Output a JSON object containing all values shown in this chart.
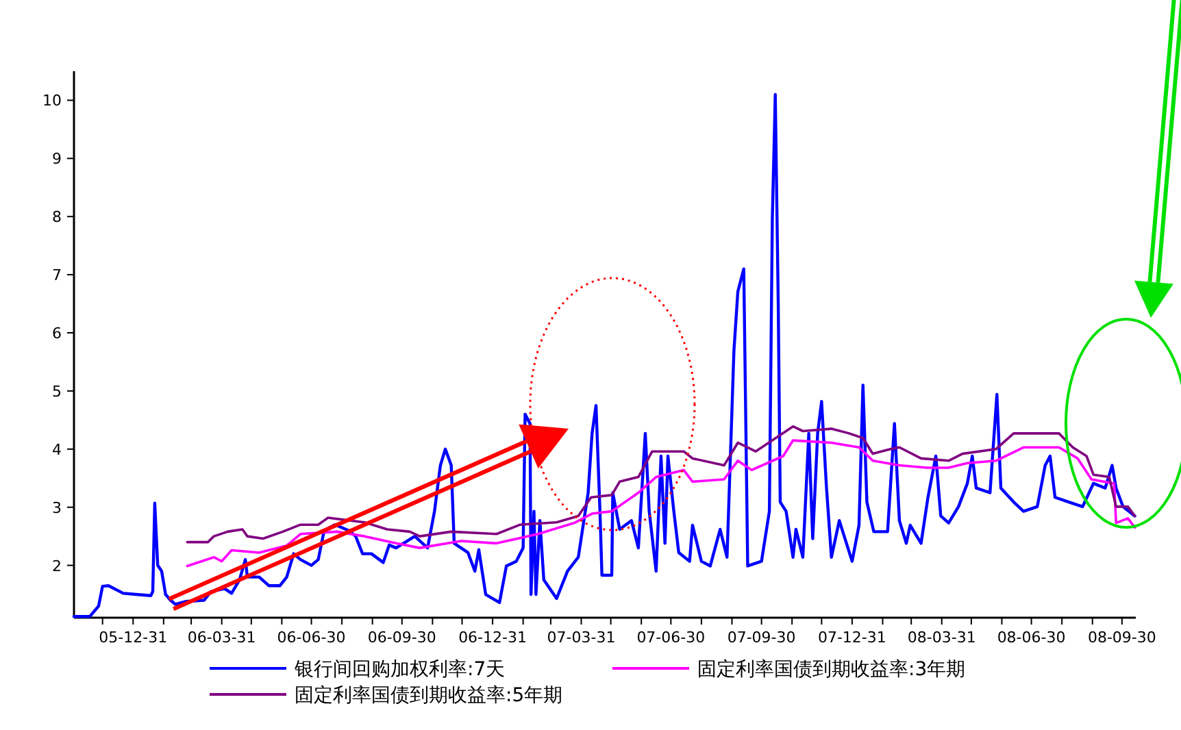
{
  "chart_data": {
    "type": "line",
    "legend": "bottom",
    "grid": false,
    "xlim": [
      "2005-11-01",
      "2008-10-14"
    ],
    "ylim": [
      1.1,
      10.5
    ],
    "yticks": [
      2,
      3,
      4,
      5,
      6,
      7,
      8,
      9,
      10
    ],
    "xticks": [
      {
        "value": "2005-11-30",
        "label": null
      },
      {
        "value": "2005-12-31",
        "label": "05-12-31"
      },
      {
        "value": "2006-01-31",
        "label": null
      },
      {
        "value": "2006-02-28",
        "label": null
      },
      {
        "value": "2006-03-31",
        "label": "06-03-31"
      },
      {
        "value": "2006-04-30",
        "label": null
      },
      {
        "value": "2006-05-31",
        "label": null
      },
      {
        "value": "2006-06-30",
        "label": "06-06-30"
      },
      {
        "value": "2006-07-31",
        "label": null
      },
      {
        "value": "2006-08-31",
        "label": null
      },
      {
        "value": "2006-09-30",
        "label": "06-09-30"
      },
      {
        "value": "2006-10-31",
        "label": null
      },
      {
        "value": "2006-11-30",
        "label": null
      },
      {
        "value": "2006-12-31",
        "label": "06-12-31"
      },
      {
        "value": "2007-01-31",
        "label": null
      },
      {
        "value": "2007-02-28",
        "label": null
      },
      {
        "value": "2007-03-31",
        "label": "07-03-31"
      },
      {
        "value": "2007-04-30",
        "label": null
      },
      {
        "value": "2007-05-31",
        "label": null
      },
      {
        "value": "2007-06-30",
        "label": "07-06-30"
      },
      {
        "value": "2007-07-31",
        "label": null
      },
      {
        "value": "2007-08-31",
        "label": null
      },
      {
        "value": "2007-09-30",
        "label": "07-09-30"
      },
      {
        "value": "2007-10-31",
        "label": null
      },
      {
        "value": "2007-11-30",
        "label": null
      },
      {
        "value": "2007-12-31",
        "label": "07-12-31"
      },
      {
        "value": "2008-01-31",
        "label": null
      },
      {
        "value": "2008-02-29",
        "label": null
      },
      {
        "value": "2008-03-31",
        "label": "08-03-31"
      },
      {
        "value": "2008-04-30",
        "label": null
      },
      {
        "value": "2008-05-31",
        "label": null
      },
      {
        "value": "2008-06-30",
        "label": "08-06-30"
      },
      {
        "value": "2008-07-31",
        "label": null
      },
      {
        "value": "2008-08-31",
        "label": null
      },
      {
        "value": "2008-09-30",
        "label": "08-09-30"
      }
    ],
    "series": [
      {
        "name": "银行间回购加权利率:7天",
        "color": "#0000ff",
        "x": [
          "2005-11-01",
          "2005-11-17",
          "2005-11-26",
          "2005-11-30",
          "2005-12-06",
          "2005-12-21",
          "2006-01-03",
          "2006-01-18",
          "2006-01-20",
          "2006-01-22",
          "2006-01-25",
          "2006-01-29",
          "2006-02-02",
          "2006-02-07",
          "2006-02-12",
          "2006-02-23",
          "2006-03-13",
          "2006-03-20",
          "2006-04-03",
          "2006-04-10",
          "2006-04-18",
          "2006-04-24",
          "2006-04-26",
          "2006-05-08",
          "2006-05-18",
          "2006-05-29",
          "2006-06-05",
          "2006-06-12",
          "2006-06-19",
          "2006-06-30",
          "2006-07-07",
          "2006-07-13",
          "2006-07-24",
          "2006-08-07",
          "2006-08-14",
          "2006-08-21",
          "2006-08-30",
          "2006-09-11",
          "2006-09-17",
          "2006-09-24",
          "2006-10-13",
          "2006-10-26",
          "2006-11-02",
          "2006-11-08",
          "2006-11-13",
          "2006-11-19",
          "2006-11-22",
          "2006-12-06",
          "2006-12-13",
          "2006-12-17",
          "2006-12-24",
          "2007-01-07",
          "2007-01-14",
          "2007-01-24",
          "2007-01-31",
          "2007-02-02",
          "2007-02-07",
          "2007-02-08",
          "2007-02-11",
          "2007-02-13",
          "2007-02-17",
          "2007-02-21",
          "2007-03-06",
          "2007-03-17",
          "2007-03-28",
          "2007-04-07",
          "2007-04-11",
          "2007-04-15",
          "2007-04-19",
          "2007-04-21",
          "2007-05-01",
          "2007-05-02",
          "2007-05-09",
          "2007-05-21",
          "2007-05-28",
          "2007-06-04",
          "2007-06-08",
          "2007-06-15",
          "2007-06-20",
          "2007-06-24",
          "2007-06-27",
          "2007-07-03",
          "2007-07-08",
          "2007-07-19",
          "2007-07-22",
          "2007-07-31",
          "2007-08-09",
          "2007-08-19",
          "2007-08-26",
          "2007-09-02",
          "2007-09-06",
          "2007-09-12",
          "2007-09-16",
          "2007-09-30",
          "2007-10-08",
          "2007-10-11",
          "2007-10-14",
          "2007-10-17",
          "2007-10-19",
          "2007-10-25",
          "2007-11-01",
          "2007-11-04",
          "2007-11-11",
          "2007-11-17",
          "2007-11-21",
          "2007-11-26",
          "2007-11-30",
          "2007-12-05",
          "2007-12-10",
          "2007-12-18",
          "2007-12-31",
          "2008-01-07",
          "2008-01-11",
          "2008-01-15",
          "2008-01-22",
          "2008-02-05",
          "2008-02-12",
          "2008-02-17",
          "2008-02-24",
          "2008-02-28",
          "2008-03-10",
          "2008-03-17",
          "2008-03-25",
          "2008-03-30",
          "2008-04-07",
          "2008-04-17",
          "2008-04-26",
          "2008-05-01",
          "2008-05-05",
          "2008-05-19",
          "2008-05-26",
          "2008-05-30",
          "2008-06-12",
          "2008-06-22",
          "2008-07-06",
          "2008-07-14",
          "2008-07-19",
          "2008-07-24",
          "2008-08-07",
          "2008-08-21",
          "2008-09-01",
          "2008-09-13",
          "2008-09-20",
          "2008-09-24",
          "2008-10-01",
          "2008-10-13"
        ],
        "values": [
          1.12,
          1.12,
          1.3,
          1.64,
          1.65,
          1.52,
          1.5,
          1.48,
          1.55,
          3.07,
          2.0,
          1.9,
          1.5,
          1.4,
          1.33,
          1.38,
          1.4,
          1.55,
          1.6,
          1.52,
          1.75,
          2.1,
          1.8,
          1.8,
          1.65,
          1.65,
          1.8,
          2.2,
          2.1,
          2.0,
          2.1,
          2.6,
          2.7,
          2.6,
          2.5,
          2.2,
          2.2,
          2.05,
          2.35,
          2.3,
          2.5,
          2.3,
          2.93,
          3.72,
          4.0,
          3.72,
          2.38,
          2.22,
          1.9,
          2.27,
          1.5,
          1.36,
          1.99,
          2.07,
          2.3,
          4.6,
          4.44,
          1.5,
          2.93,
          1.5,
          2.77,
          1.75,
          1.43,
          1.9,
          2.14,
          3.25,
          4.27,
          4.75,
          2.93,
          1.83,
          1.83,
          3.25,
          2.62,
          2.77,
          2.3,
          4.27,
          2.93,
          1.9,
          3.88,
          2.38,
          3.88,
          2.93,
          2.22,
          2.07,
          2.69,
          2.07,
          1.99,
          2.62,
          2.14,
          5.69,
          6.71,
          7.1,
          1.99,
          2.07,
          2.93,
          7.96,
          10.1,
          6.5,
          3.09,
          2.93,
          2.14,
          2.62,
          2.14,
          4.27,
          2.46,
          4.27,
          4.82,
          3.33,
          2.14,
          2.77,
          2.07,
          2.69,
          5.1,
          3.09,
          2.58,
          2.58,
          4.44,
          2.77,
          2.38,
          2.69,
          2.38,
          3.17,
          3.88,
          2.85,
          2.73,
          3.01,
          3.41,
          3.88,
          3.33,
          3.25,
          4.94,
          3.33,
          3.09,
          2.93,
          3.01,
          3.72,
          3.88,
          3.17,
          3.09,
          3.01,
          3.41,
          3.33,
          3.72,
          3.33,
          3.01,
          2.85
        ]
      },
      {
        "name": "固定利率国债到期收益率:3年期",
        "color": "#ff00ff",
        "x": [
          "2006-02-24",
          "2006-03-23",
          "2006-03-31",
          "2006-04-10",
          "2006-05-08",
          "2006-06-05",
          "2006-06-19",
          "2006-07-26",
          "2006-08-23",
          "2006-09-24",
          "2006-10-18",
          "2006-11-29",
          "2007-01-04",
          "2007-02-15",
          "2007-03-24",
          "2007-04-11",
          "2007-05-01",
          "2007-05-28",
          "2007-06-15",
          "2007-07-13",
          "2007-07-22",
          "2007-08-23",
          "2007-09-06",
          "2007-09-20",
          "2007-10-22",
          "2007-11-01",
          "2007-12-10",
          "2008-01-07",
          "2008-01-21",
          "2008-02-17",
          "2008-03-16",
          "2008-04-07",
          "2008-04-26",
          "2008-05-25",
          "2008-06-22",
          "2008-07-28",
          "2008-08-16",
          "2008-08-30",
          "2008-09-22",
          "2008-09-24",
          "2008-10-06",
          "2008-10-13"
        ],
        "values": [
          1.99,
          2.14,
          2.07,
          2.26,
          2.22,
          2.34,
          2.54,
          2.58,
          2.5,
          2.38,
          2.3,
          2.42,
          2.38,
          2.54,
          2.73,
          2.89,
          2.93,
          3.25,
          3.52,
          3.64,
          3.44,
          3.48,
          3.8,
          3.64,
          3.88,
          4.15,
          4.11,
          4.03,
          3.8,
          3.72,
          3.68,
          3.68,
          3.76,
          3.8,
          4.03,
          4.03,
          3.84,
          3.48,
          3.41,
          2.73,
          2.81,
          2.65
        ]
      },
      {
        "name": "固定利率国债到期收益率:5年期",
        "color": "#800080",
        "x": [
          "2006-02-24",
          "2006-03-17",
          "2006-03-23",
          "2006-04-06",
          "2006-04-21",
          "2006-04-26",
          "2006-05-12",
          "2006-06-01",
          "2006-06-19",
          "2006-07-07",
          "2006-07-17",
          "2006-08-04",
          "2006-08-23",
          "2006-09-15",
          "2006-10-08",
          "2006-10-18",
          "2006-11-19",
          "2007-01-04",
          "2007-01-28",
          "2007-03-06",
          "2007-03-28",
          "2007-04-10",
          "2007-05-01",
          "2007-05-09",
          "2007-05-28",
          "2007-06-11",
          "2007-07-13",
          "2007-07-22",
          "2007-08-23",
          "2007-09-06",
          "2007-09-24",
          "2007-10-18",
          "2007-11-01",
          "2007-11-11",
          "2007-12-10",
          "2007-12-28",
          "2008-01-11",
          "2008-01-21",
          "2008-02-08",
          "2008-02-17",
          "2008-03-10",
          "2008-04-07",
          "2008-04-21",
          "2008-05-25",
          "2008-06-12",
          "2008-07-28",
          "2008-08-11",
          "2008-08-25",
          "2008-09-01",
          "2008-09-17",
          "2008-09-24",
          "2008-10-06",
          "2008-10-13"
        ],
        "values": [
          2.4,
          2.4,
          2.5,
          2.58,
          2.62,
          2.5,
          2.46,
          2.58,
          2.7,
          2.7,
          2.82,
          2.78,
          2.74,
          2.62,
          2.58,
          2.5,
          2.58,
          2.54,
          2.7,
          2.74,
          2.85,
          3.17,
          3.21,
          3.44,
          3.52,
          3.96,
          3.96,
          3.84,
          3.72,
          4.11,
          3.96,
          4.23,
          4.39,
          4.31,
          4.35,
          4.27,
          4.19,
          3.92,
          4.0,
          4.03,
          3.84,
          3.8,
          3.92,
          4.0,
          4.27,
          4.27,
          4.03,
          3.88,
          3.56,
          3.52,
          3.01,
          3.01,
          2.85
        ]
      }
    ]
  }
}
